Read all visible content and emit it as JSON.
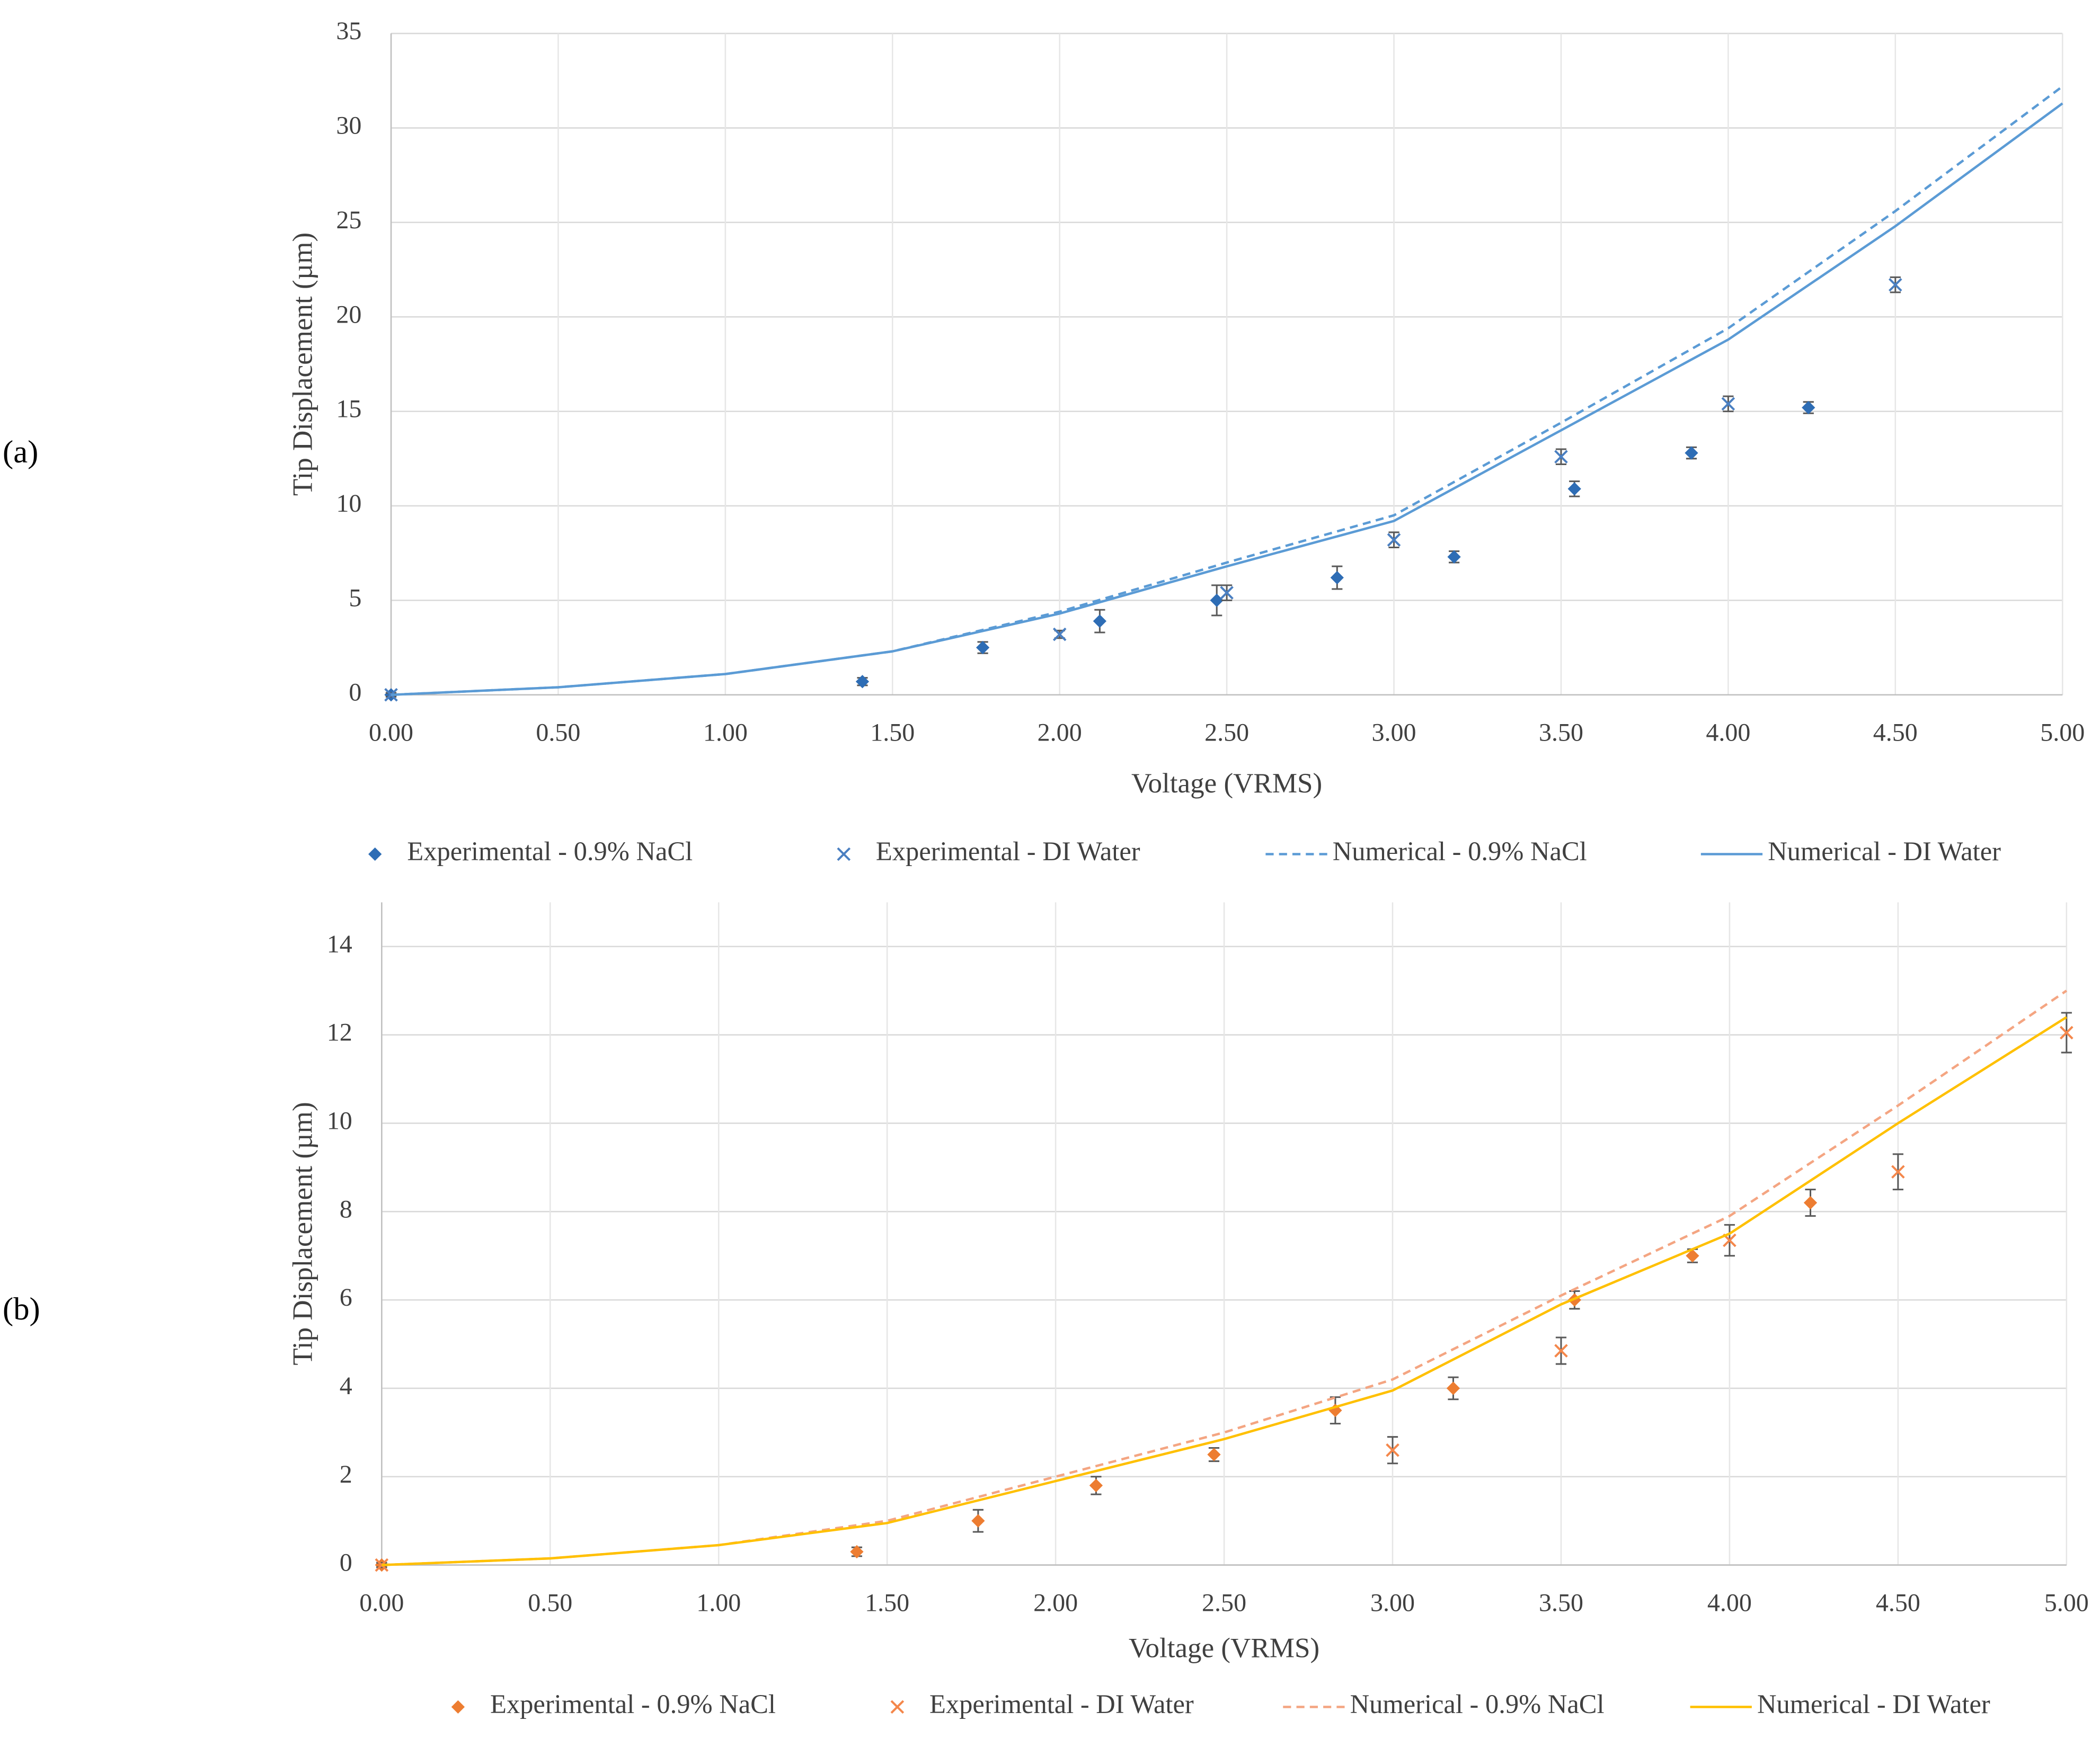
{
  "chart_data": [
    {
      "type": "scatter",
      "panel_label": "(a)",
      "x_label": "Voltage (VRMS)",
      "y_label": "Tip Displacement (µm)",
      "xlim": [
        0,
        5
      ],
      "ylim": [
        0,
        35
      ],
      "xticks": [
        {
          "value": 0,
          "label": "0.00"
        },
        {
          "value": 0.5,
          "label": "0.50"
        },
        {
          "value": 1,
          "label": "1.00"
        },
        {
          "value": 1.5,
          "label": "1.50"
        },
        {
          "value": 2,
          "label": "2.00"
        },
        {
          "value": 2.5,
          "label": "2.50"
        },
        {
          "value": 3,
          "label": "3.00"
        },
        {
          "value": 3.5,
          "label": "3.50"
        },
        {
          "value": 4,
          "label": "4.00"
        },
        {
          "value": 4.5,
          "label": "4.50"
        },
        {
          "value": 5,
          "label": "5.00"
        }
      ],
      "yticks": [
        0,
        5,
        10,
        15,
        20,
        25,
        30,
        35
      ],
      "grid": true,
      "legend": "bottom",
      "error_color": "#595959",
      "series": [
        {
          "name": "Experimental - 0.9% NaCl",
          "style": "markers",
          "marker": "diamond",
          "color": "#2e6db5",
          "x": [
            0,
            1.41,
            1.77,
            2.12,
            2.47,
            2.83,
            3.18,
            3.54,
            3.89,
            4.24
          ],
          "values": [
            0,
            0.7,
            2.5,
            3.9,
            5.0,
            6.2,
            7.3,
            10.9,
            12.8,
            15.2
          ],
          "errors": [
            0.1,
            0.2,
            0.3,
            0.6,
            0.8,
            0.6,
            0.3,
            0.4,
            0.3,
            0.3
          ]
        },
        {
          "name": "Experimental - DI Water",
          "style": "markers",
          "marker": "x",
          "color": "#4a7fc1",
          "x": [
            0,
            2.0,
            2.5,
            3.0,
            3.5,
            4.0,
            4.5
          ],
          "values": [
            0,
            3.2,
            5.4,
            8.2,
            12.6,
            15.4,
            21.7
          ],
          "errors": [
            0.1,
            0.2,
            0.4,
            0.4,
            0.4,
            0.4,
            0.4
          ]
        },
        {
          "name": "Numerical - 0.9% NaCl",
          "style": "line",
          "dash": "dashed",
          "color": "#5b9bd5",
          "x": [
            0,
            0.5,
            1,
            1.5,
            2,
            2.5,
            3,
            3.5,
            4,
            4.5,
            5
          ],
          "values": [
            0,
            0.4,
            1.1,
            2.3,
            4.4,
            7.0,
            9.5,
            14.4,
            19.4,
            25.6,
            32.2
          ]
        },
        {
          "name": "Numerical - DI Water",
          "style": "line",
          "dash": "solid",
          "color": "#5b9bd5",
          "x": [
            0,
            0.5,
            1,
            1.5,
            2,
            2.5,
            3,
            3.5,
            4,
            4.5,
            5
          ],
          "values": [
            0,
            0.4,
            1.1,
            2.3,
            4.3,
            6.8,
            9.2,
            14.0,
            18.8,
            24.8,
            31.3
          ]
        }
      ]
    },
    {
      "type": "scatter",
      "panel_label": "(b)",
      "x_label": "Voltage (VRMS)",
      "y_label": "Tip Displacement (µm)",
      "xlim": [
        0,
        5
      ],
      "ylim": [
        0,
        15
      ],
      "xticks": [
        {
          "value": 0,
          "label": "0.00"
        },
        {
          "value": 0.5,
          "label": "0.50"
        },
        {
          "value": 1,
          "label": "1.00"
        },
        {
          "value": 1.5,
          "label": "1.50"
        },
        {
          "value": 2,
          "label": "2.00"
        },
        {
          "value": 2.5,
          "label": "2.50"
        },
        {
          "value": 3,
          "label": "3.00"
        },
        {
          "value": 3.5,
          "label": "3.50"
        },
        {
          "value": 4,
          "label": "4.00"
        },
        {
          "value": 4.5,
          "label": "4.50"
        },
        {
          "value": 5,
          "label": "5.00"
        }
      ],
      "yticks": [
        0,
        2,
        4,
        6,
        8,
        10,
        12,
        14
      ],
      "grid": true,
      "legend": "bottom",
      "error_color": "#595959",
      "series": [
        {
          "name": "Experimental - 0.9% NaCl",
          "style": "markers",
          "marker": "diamond",
          "color": "#ed7d31",
          "x": [
            0,
            1.41,
            1.77,
            2.12,
            2.47,
            2.83,
            3.18,
            3.54,
            3.89,
            4.24
          ],
          "values": [
            0,
            0.3,
            1.0,
            1.8,
            2.5,
            3.5,
            4.0,
            6.0,
            7.0,
            8.2
          ],
          "errors": [
            0.05,
            0.1,
            0.25,
            0.2,
            0.15,
            0.3,
            0.25,
            0.2,
            0.15,
            0.3
          ]
        },
        {
          "name": "Experimental - DI Water",
          "style": "markers",
          "marker": "x",
          "color": "#f4874b",
          "x": [
            0,
            3.0,
            3.5,
            4.0,
            4.5,
            5.0
          ],
          "values": [
            0,
            2.6,
            4.85,
            7.35,
            8.9,
            12.05
          ],
          "errors": [
            0.05,
            0.3,
            0.3,
            0.35,
            0.4,
            0.45
          ]
        },
        {
          "name": "Numerical - 0.9% NaCl",
          "style": "line",
          "dash": "dashed",
          "color": "#f4a582",
          "x": [
            0,
            0.5,
            1,
            1.5,
            2,
            2.5,
            3,
            3.5,
            4,
            4.5,
            5
          ],
          "values": [
            0,
            0.15,
            0.45,
            1.0,
            2.0,
            3.0,
            4.2,
            6.1,
            7.9,
            10.4,
            13.0
          ]
        },
        {
          "name": "Numerical - DI Water",
          "style": "line",
          "dash": "solid",
          "color": "#ffc000",
          "x": [
            0,
            0.5,
            1,
            1.5,
            2,
            2.5,
            3,
            3.5,
            4,
            4.5,
            5
          ],
          "values": [
            0,
            0.15,
            0.45,
            0.95,
            1.9,
            2.85,
            3.95,
            5.9,
            7.5,
            10.0,
            12.4
          ]
        }
      ]
    }
  ]
}
